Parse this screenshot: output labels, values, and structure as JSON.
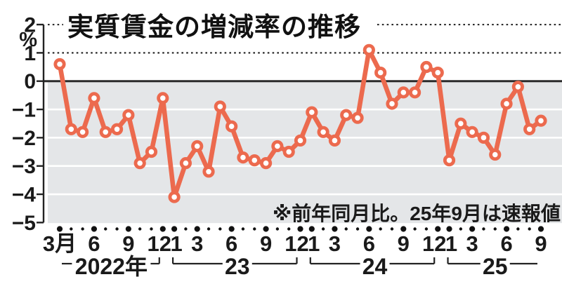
{
  "title": "実質賃金の増減率の推移",
  "note": "※前年同月比。25年9月は速報値",
  "colors": {
    "line": "#EC6A4E",
    "plot_bg": "#E4E6E8",
    "grid_white": "#FFFFFF",
    "axis": "#222222",
    "text": "#1A1A1A"
  },
  "y_axis": {
    "unit_label": "%",
    "ticks": [
      2,
      1,
      0,
      -1,
      -2,
      -3,
      -4,
      -5
    ],
    "tick_labels": [
      "2",
      "1",
      "0",
      "−1",
      "−2",
      "−3",
      "−4",
      "−5"
    ]
  },
  "x_axis": {
    "month_ticks": [
      {
        "i": 0,
        "label": "3月"
      },
      {
        "i": 3,
        "label": "6"
      },
      {
        "i": 6,
        "label": "9"
      },
      {
        "i": 9,
        "label": "12"
      },
      {
        "i": 10,
        "label": "1"
      },
      {
        "i": 12,
        "label": "3"
      },
      {
        "i": 15,
        "label": "6"
      },
      {
        "i": 18,
        "label": "9"
      },
      {
        "i": 21,
        "label": "12"
      },
      {
        "i": 22,
        "label": "1"
      },
      {
        "i": 24,
        "label": "3"
      },
      {
        "i": 27,
        "label": "6"
      },
      {
        "i": 30,
        "label": "9"
      },
      {
        "i": 33,
        "label": "12"
      },
      {
        "i": 34,
        "label": "1"
      },
      {
        "i": 36,
        "label": "3"
      },
      {
        "i": 39,
        "label": "6"
      },
      {
        "i": 42,
        "label": "9"
      }
    ],
    "year_brackets": [
      {
        "label": "2022年",
        "startI": 0,
        "endI": 9,
        "startTick": false,
        "endTick": true
      },
      {
        "label": "23",
        "startI": 10,
        "endI": 21,
        "startTick": true,
        "endTick": true
      },
      {
        "label": "24",
        "startI": 22,
        "endI": 33,
        "startTick": true,
        "endTick": true
      },
      {
        "label": "25",
        "startI": 34,
        "endI": 42,
        "startTick": true,
        "endTick": false
      }
    ]
  },
  "chart_data": {
    "type": "line",
    "title": "実質賃金の増減率の推移",
    "ylabel": "%",
    "ylim": [
      -5,
      2
    ],
    "grid": true,
    "note": "※前年同月比。25年9月は速報値",
    "x": [
      "2022-03",
      "2022-04",
      "2022-05",
      "2022-06",
      "2022-07",
      "2022-08",
      "2022-09",
      "2022-10",
      "2022-11",
      "2022-12",
      "2023-01",
      "2023-02",
      "2023-03",
      "2023-04",
      "2023-05",
      "2023-06",
      "2023-07",
      "2023-08",
      "2023-09",
      "2023-10",
      "2023-11",
      "2023-12",
      "2024-01",
      "2024-02",
      "2024-03",
      "2024-04",
      "2024-05",
      "2024-06",
      "2024-07",
      "2024-08",
      "2024-09",
      "2024-10",
      "2024-11",
      "2024-12",
      "2025-01",
      "2025-02",
      "2025-03",
      "2025-04",
      "2025-05",
      "2025-06",
      "2025-07",
      "2025-08",
      "2025-09"
    ],
    "values": [
      0.6,
      -1.7,
      -1.8,
      -0.6,
      -1.8,
      -1.7,
      -1.2,
      -2.9,
      -2.5,
      -0.6,
      -4.1,
      -2.9,
      -2.3,
      -3.2,
      -0.9,
      -1.6,
      -2.7,
      -2.8,
      -2.9,
      -2.3,
      -2.5,
      -2.1,
      -1.1,
      -1.8,
      -2.1,
      -1.2,
      -1.3,
      1.1,
      0.3,
      -0.8,
      -0.4,
      -0.4,
      0.5,
      0.3,
      -2.8,
      -1.5,
      -1.8,
      -2.0,
      -2.6,
      -0.8,
      -0.2,
      -1.7,
      -1.4
    ]
  }
}
